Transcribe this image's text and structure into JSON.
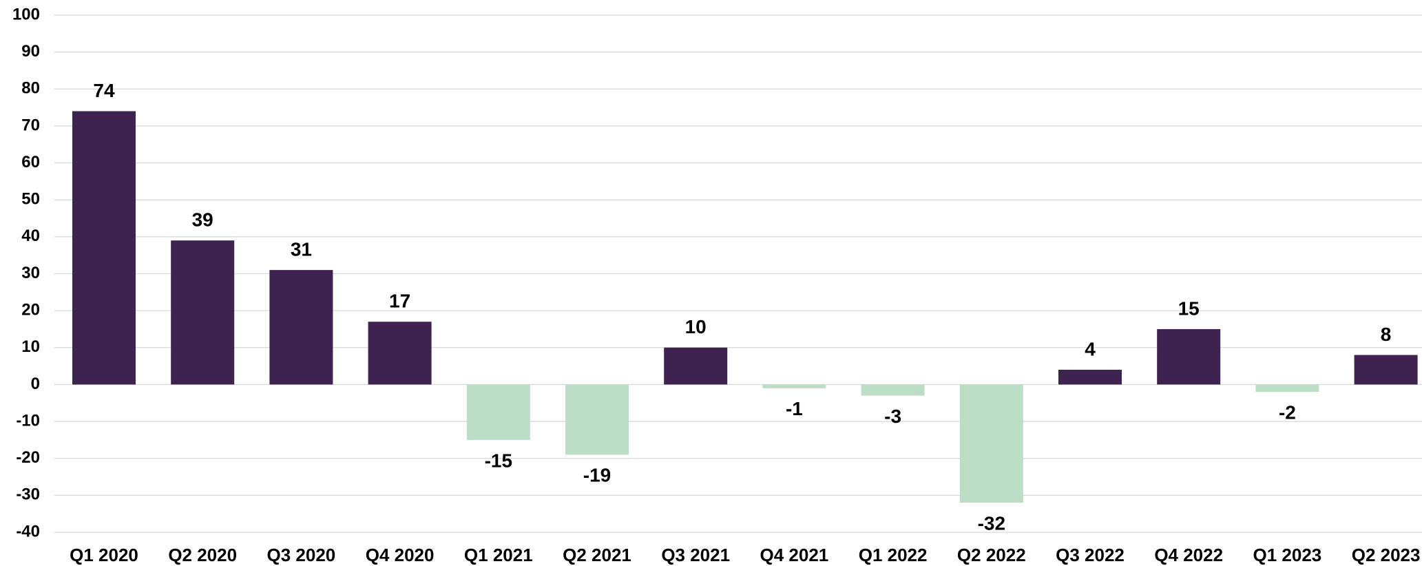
{
  "chart_data": {
    "type": "bar",
    "categories": [
      "Q1 2020",
      "Q2 2020",
      "Q3 2020",
      "Q4 2020",
      "Q1 2021",
      "Q2 2021",
      "Q3 2021",
      "Q4 2021",
      "Q1 2022",
      "Q2 2022",
      "Q3 2022",
      "Q4 2022",
      "Q1 2023",
      "Q2 2023"
    ],
    "values": [
      74,
      39,
      31,
      17,
      -15,
      -19,
      10,
      -1,
      -3,
      -32,
      4,
      15,
      -2,
      8
    ],
    "color": "#3e2350",
    "negative_color": "#bcdec6",
    "ylim": [
      -40,
      100
    ],
    "yticks": [
      -40,
      -30,
      -20,
      -10,
      0,
      10,
      20,
      30,
      40,
      50,
      60,
      70,
      80,
      90,
      100
    ],
    "grid": true
  }
}
